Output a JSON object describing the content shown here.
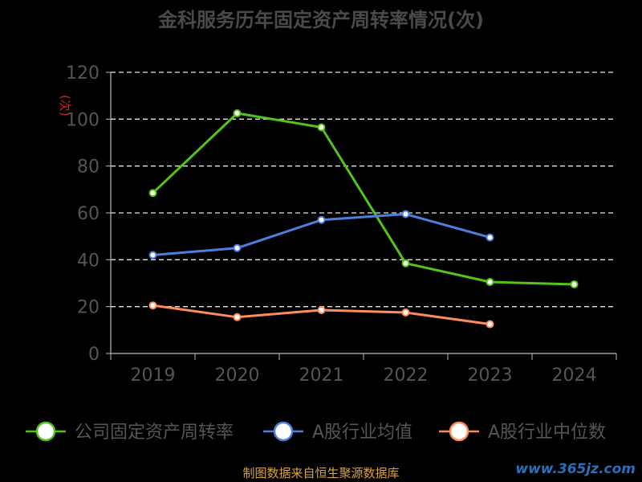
{
  "chart_data": {
    "type": "line",
    "title": "金科服务历年固定资产周转率情况(次)",
    "ylabel_mark": "(次)",
    "categories": [
      "2019",
      "2020",
      "2021",
      "2022",
      "2023",
      "2024"
    ],
    "ylim": [
      0,
      120
    ],
    "yticks": [
      0,
      20,
      40,
      60,
      80,
      100,
      120
    ],
    "grid": true,
    "legend_position": "bottom",
    "series": [
      {
        "name": "公司固定资产周转率",
        "color": "#52c41a",
        "values": [
          68.5,
          102.5,
          96.5,
          38.5,
          30.5,
          29.5
        ]
      },
      {
        "name": "A股行业均值",
        "color": "#4e7fe0",
        "values": [
          42,
          45,
          57,
          59.5,
          49.5,
          null
        ]
      },
      {
        "name": "A股行业中位数",
        "color": "#ff8c5a",
        "values": [
          20.5,
          15.5,
          18.5,
          17.5,
          12.5,
          null
        ]
      }
    ]
  },
  "footer": {
    "source": "制图数据来自恒生聚源数据库",
    "watermark": "www.365jz.com"
  }
}
